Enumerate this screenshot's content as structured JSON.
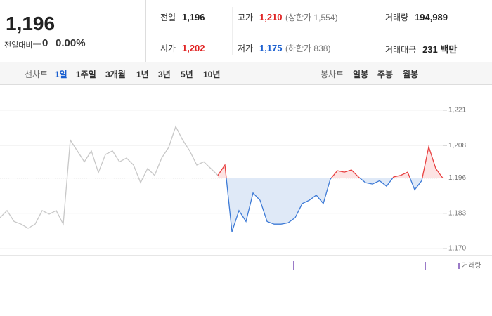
{
  "header": {
    "price": "1,196",
    "change_label": "전일대비",
    "change": "0",
    "change_rate": "0.00%",
    "stats": [
      {
        "label": "전일",
        "value": "1,196"
      },
      {
        "label": "고가",
        "value": "1,210",
        "extra": "(상한가 1,554)"
      },
      {
        "label": "거래량",
        "value": "194,989"
      },
      {
        "label": "시가",
        "value": "1,202"
      },
      {
        "label": "저가",
        "value": "1,175",
        "extra": "(하한가 838)"
      },
      {
        "label": "거래대금",
        "value": "231 백만"
      }
    ]
  },
  "tabs": {
    "line_label": "선차트",
    "line_periods": [
      "1일",
      "1주일",
      "3개월",
      "1년",
      "3년",
      "5년",
      "10년"
    ],
    "candle_label": "봉차트",
    "candle_periods": [
      "일봉",
      "주봉",
      "월봉"
    ]
  },
  "chart_data": {
    "type": "line",
    "baseline": 1196,
    "ylim": [
      1170,
      1221
    ],
    "yticks": [
      {
        "value": 1170,
        "label": "1,170"
      },
      {
        "value": 1183,
        "label": "1,183"
      },
      {
        "value": 1196,
        "label": "1,196"
      },
      {
        "value": 1208,
        "label": "1,208"
      },
      {
        "value": 1221,
        "label": "1,221"
      }
    ],
    "series": [
      {
        "color": "#c8c8c8",
        "values": [
          1181.4,
          1184,
          1180,
          1179,
          1177.5,
          1179,
          1184,
          1182.7,
          1184,
          1179,
          1210,
          1206,
          1202,
          1206,
          1198,
          1204.7,
          1206,
          1202,
          1203.4,
          1200.8,
          1194.3,
          1199.5,
          1197,
          1203.4,
          1207.3,
          1215,
          1210,
          1206,
          1200.8,
          1202,
          1199.5,
          1197,
          null,
          null,
          null,
          null,
          null,
          null,
          null,
          null,
          null,
          null,
          null,
          null,
          null,
          null,
          null,
          null,
          null,
          null,
          null,
          null,
          null,
          null,
          null,
          null,
          null,
          null,
          null,
          null,
          null,
          null,
          null,
          null
        ]
      },
      {
        "color": "#3d7ad6",
        "values": [
          null,
          null,
          null,
          null,
          null,
          null,
          null,
          null,
          null,
          null,
          null,
          null,
          null,
          null,
          null,
          null,
          null,
          null,
          null,
          null,
          null,
          null,
          null,
          null,
          null,
          null,
          null,
          null,
          null,
          null,
          null,
          1197,
          1200.8,
          1176.2,
          1184,
          1180,
          1190.5,
          1187.8,
          1180,
          1179,
          1179,
          1179.5,
          1181.4,
          1186.6,
          1187.8,
          1189.7,
          1186.6,
          1195.6,
          1198.7,
          1198.2,
          1199,
          1196.4,
          1194.3,
          1193.8,
          1195,
          1193,
          1196.4,
          1197,
          1198.2,
          1191.7,
          1195,
          1207.5,
          1199.5,
          1196
        ]
      }
    ],
    "volume_label": "거래량"
  }
}
